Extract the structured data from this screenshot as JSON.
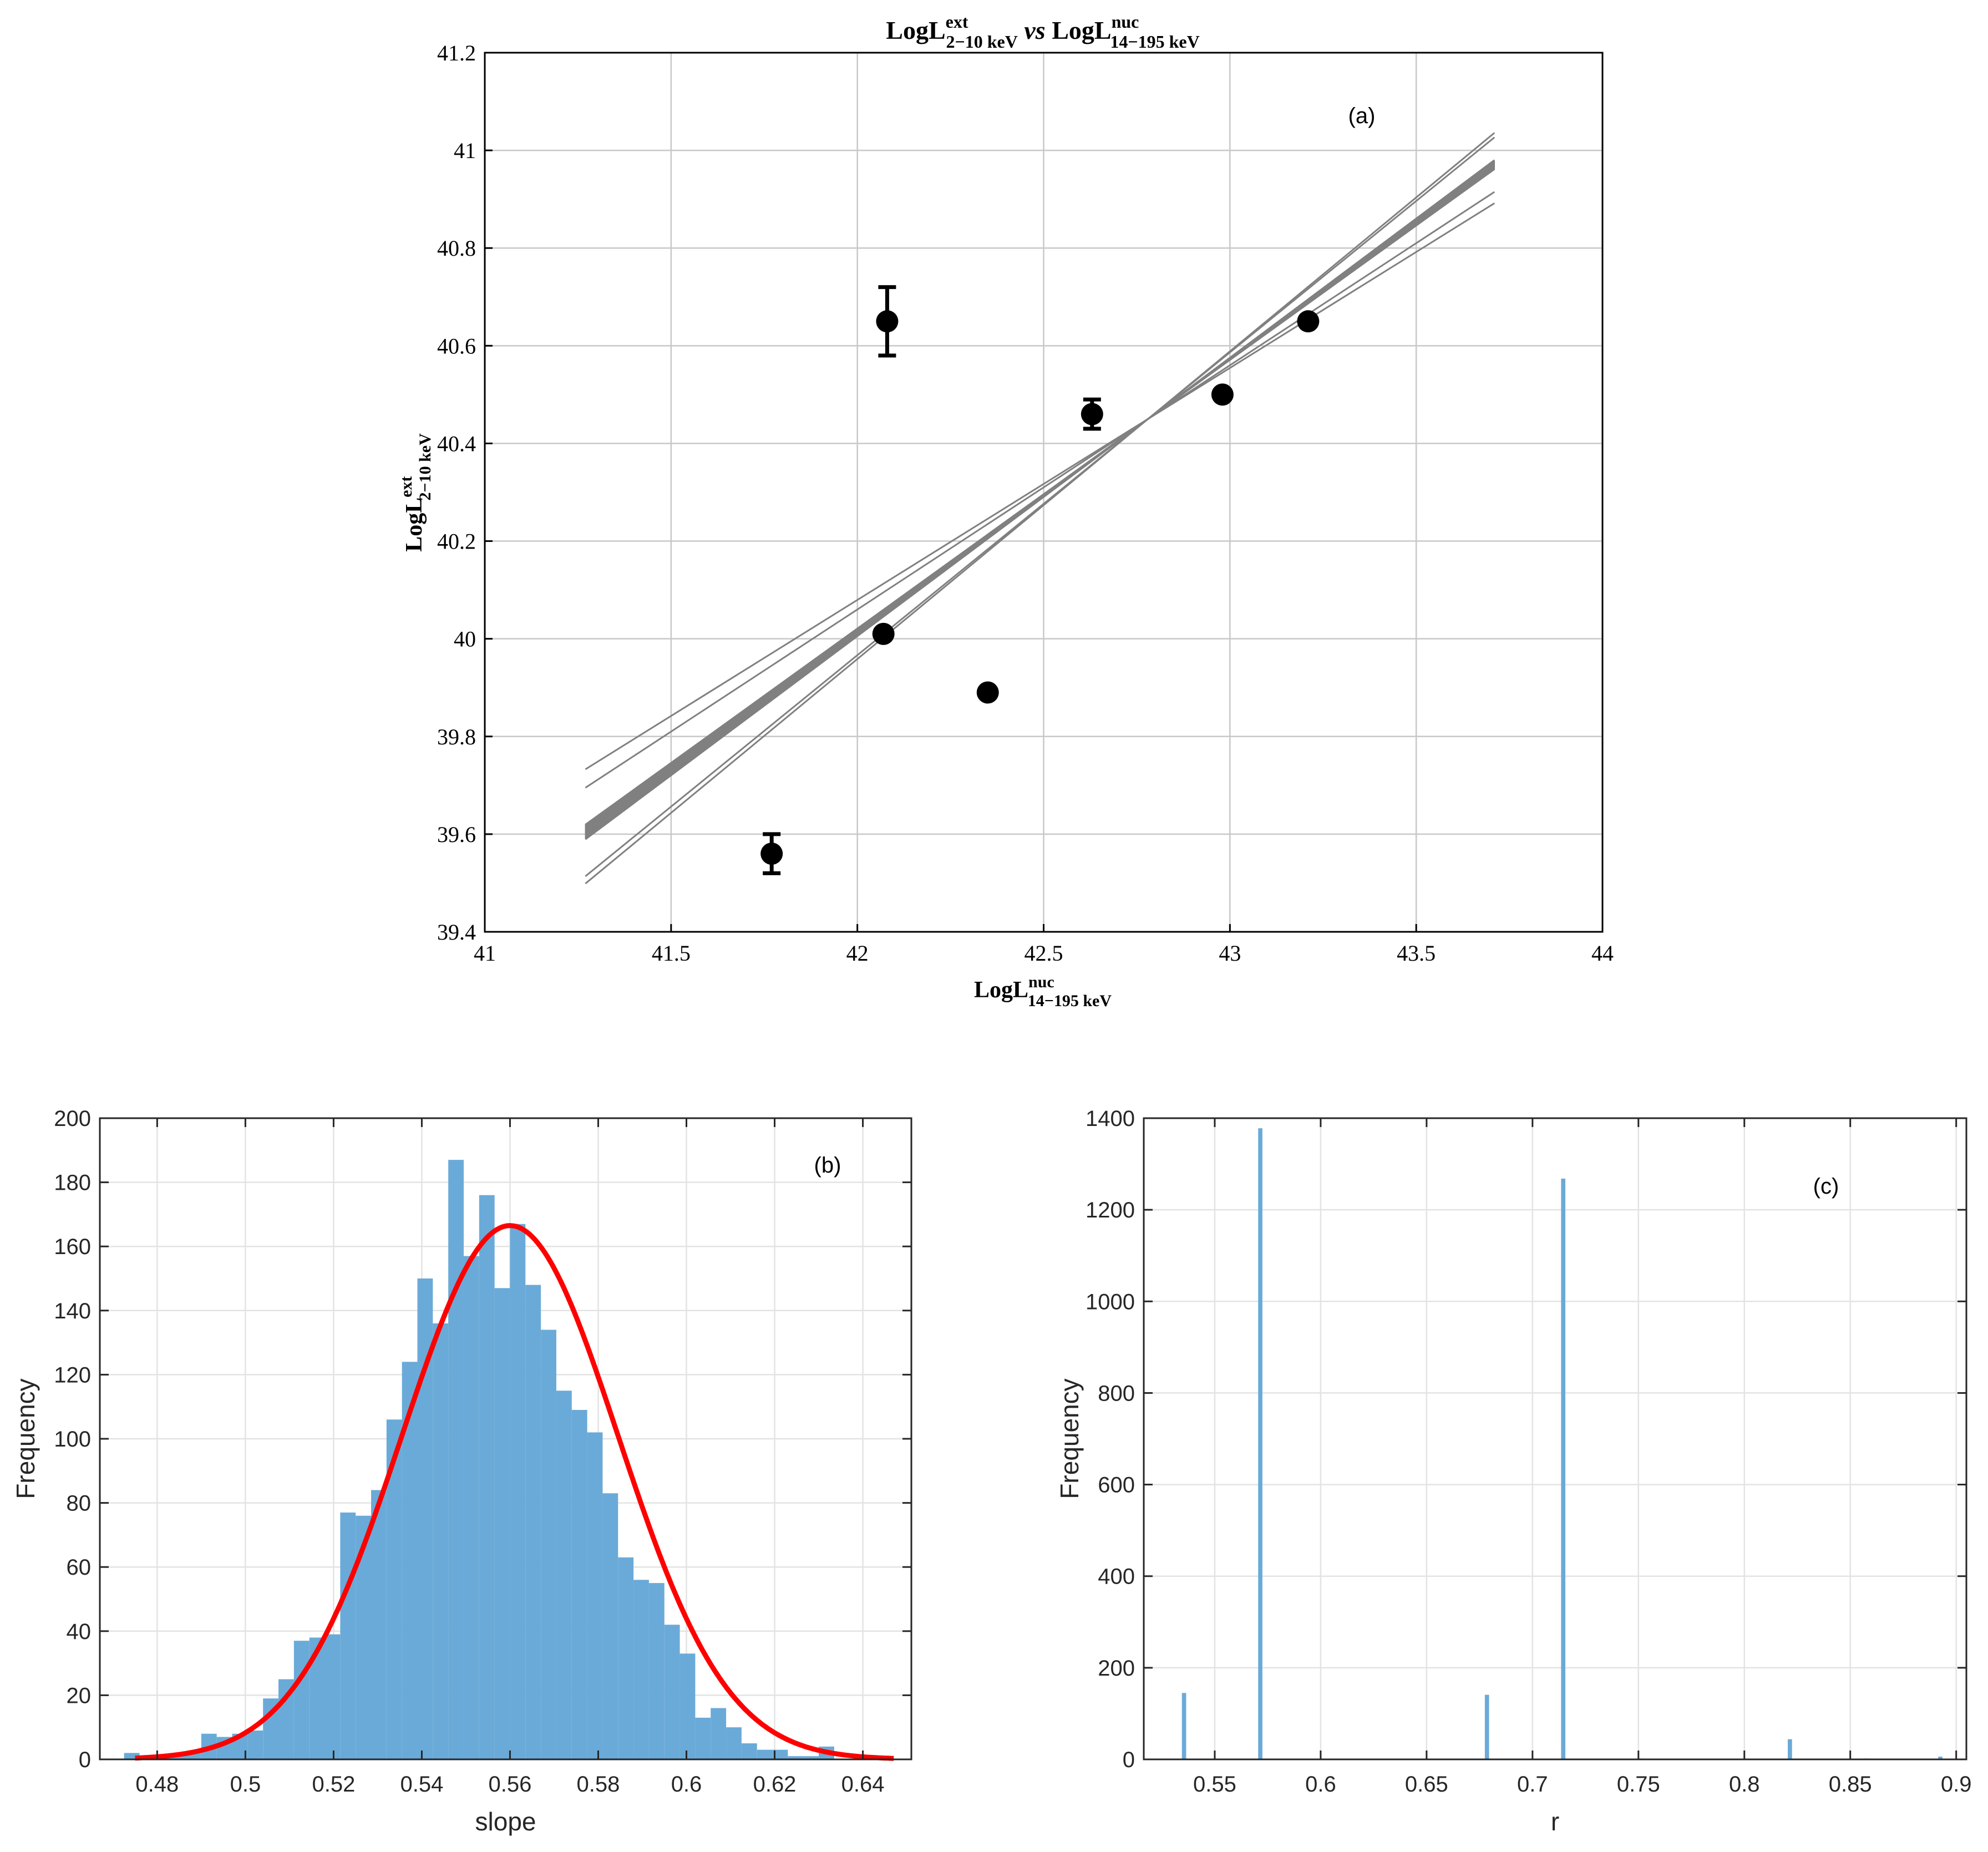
{
  "chart_data": [
    {
      "panel": "a",
      "type": "scatter",
      "title": {
        "base": "LogL",
        "sup": "ext",
        "sub": "2−10 keV",
        "vs": "vs",
        "base2": "LogL",
        "sup2": "nuc",
        "sub2": "14−195 keV"
      },
      "panel_label": "(a)",
      "xlabel": {
        "base": "LogL",
        "sup": "nuc",
        "sub": "14−195 keV"
      },
      "ylabel": {
        "base": "LogL",
        "sup": "ext",
        "sub": "2−10 keV"
      },
      "xlim": [
        41,
        44
      ],
      "ylim": [
        39.4,
        41.2
      ],
      "xticks": [
        41,
        41.5,
        42,
        42.5,
        43,
        43.5,
        44
      ],
      "xtick_labels": [
        "41",
        "41.5",
        "42",
        "42.5",
        "43",
        "43.5",
        "44"
      ],
      "yticks": [
        39.4,
        39.6,
        39.8,
        40,
        40.2,
        40.4,
        40.6,
        40.8,
        41,
        41.2
      ],
      "ytick_labels": [
        "39.4",
        "39.6",
        "39.8",
        "40",
        "40.2",
        "40.4",
        "40.6",
        "40.8",
        "41",
        "41.2"
      ],
      "grid": true,
      "points": [
        {
          "x": 41.77,
          "y": 39.56,
          "err": 0.04
        },
        {
          "x": 42.08,
          "y": 40.65,
          "err": 0.07
        },
        {
          "x": 42.07,
          "y": 40.01,
          "err": 0.0
        },
        {
          "x": 42.35,
          "y": 39.89,
          "err": 0.0
        },
        {
          "x": 42.63,
          "y": 40.46,
          "err": 0.03
        },
        {
          "x": 42.98,
          "y": 40.5,
          "err": 0.0
        },
        {
          "x": 43.21,
          "y": 40.65,
          "err": 0.0
        }
      ],
      "fit_lines": {
        "color": "#808080",
        "x_range": [
          41.27,
          43.71
        ],
        "pivot": {
          "x": 42.78,
          "y": 40.45
        },
        "slope_band": [
          0.55,
          0.57
        ],
        "outlier_slopes": [
          0.475,
          0.5,
          0.62,
          0.63
        ]
      }
    },
    {
      "panel": "b",
      "type": "bar",
      "panel_label": "(b)",
      "xlabel": "slope",
      "ylabel": "Frequency",
      "xlim": [
        0.467,
        0.651
      ],
      "ylim": [
        0,
        200
      ],
      "xticks": [
        0.48,
        0.5,
        0.52,
        0.54,
        0.56,
        0.58,
        0.6,
        0.62,
        0.64
      ],
      "xtick_labels": [
        "0.48",
        "0.5",
        "0.52",
        "0.54",
        "0.56",
        "0.58",
        "0.6",
        "0.62",
        "0.64"
      ],
      "yticks": [
        0,
        20,
        40,
        60,
        80,
        100,
        120,
        140,
        160,
        180,
        200
      ],
      "ytick_labels": [
        "0",
        "20",
        "40",
        "60",
        "80",
        "100",
        "120",
        "140",
        "160",
        "180",
        "200"
      ],
      "grid": true,
      "bar_color": "#6aaad8",
      "bin_start": 0.4725,
      "bin_width": 0.0035,
      "values": [
        2,
        0,
        1,
        2,
        2,
        8,
        7,
        8,
        9,
        19,
        25,
        37,
        38,
        39,
        77,
        76,
        84,
        106,
        124,
        150,
        136,
        187,
        157,
        176,
        147,
        167,
        148,
        134,
        115,
        109,
        102,
        83,
        63,
        56,
        55,
        42,
        33,
        13,
        16,
        10,
        5,
        3,
        3,
        1,
        1,
        4
      ],
      "fit": {
        "type": "gaussian",
        "color": "#ff0000",
        "mean": 0.56,
        "sigma": 0.0245,
        "peak": 166.5,
        "x_range": [
          0.475,
          0.647
        ]
      }
    },
    {
      "panel": "c",
      "type": "bar",
      "panel_label": "(c)",
      "xlabel": "r",
      "ylabel": "Frequency",
      "xlim": [
        0.5165,
        0.9048
      ],
      "ylim": [
        0,
        1400
      ],
      "xticks": [
        0.55,
        0.6,
        0.65,
        0.7,
        0.75,
        0.8,
        0.85,
        0.9
      ],
      "xtick_labels": [
        "0.55",
        "0.6",
        "0.65",
        "0.7",
        "0.75",
        "0.8",
        "0.85",
        "0.9"
      ],
      "yticks": [
        0,
        200,
        400,
        600,
        800,
        1000,
        1200,
        1400
      ],
      "ytick_labels": [
        "0",
        "200",
        "400",
        "600",
        "800",
        "1000",
        "1200",
        "1400"
      ],
      "grid": true,
      "bar_color": "#6aaad8",
      "bar_width": 0.002,
      "bars": [
        {
          "x": 0.5355,
          "value": 145
        },
        {
          "x": 0.5715,
          "value": 1378
        },
        {
          "x": 0.6785,
          "value": 141
        },
        {
          "x": 0.7145,
          "value": 1268
        },
        {
          "x": 0.7505,
          "value": 2
        },
        {
          "x": 0.8215,
          "value": 44
        },
        {
          "x": 0.8575,
          "value": 2
        },
        {
          "x": 0.8925,
          "value": 6
        }
      ]
    }
  ]
}
